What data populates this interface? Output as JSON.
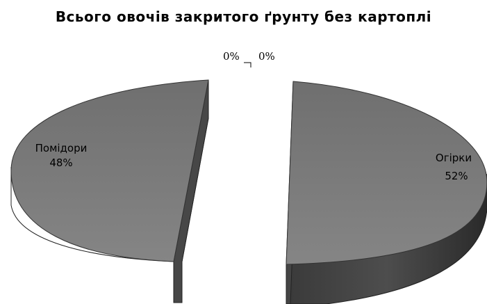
{
  "chart_data": {
    "type": "pie",
    "title": "Всього овочів закритого ґрунту без картоплі",
    "categories": [
      "Помідори",
      "Огірки",
      "",
      ""
    ],
    "values": [
      48,
      52,
      0,
      0
    ],
    "percent_labels": [
      "48%",
      "52%",
      "0%",
      "0%"
    ],
    "style": "3d-exploded",
    "colors": {
      "top": "#7a7a7a",
      "side": "#3f3f3f",
      "edge": "#262626"
    }
  }
}
